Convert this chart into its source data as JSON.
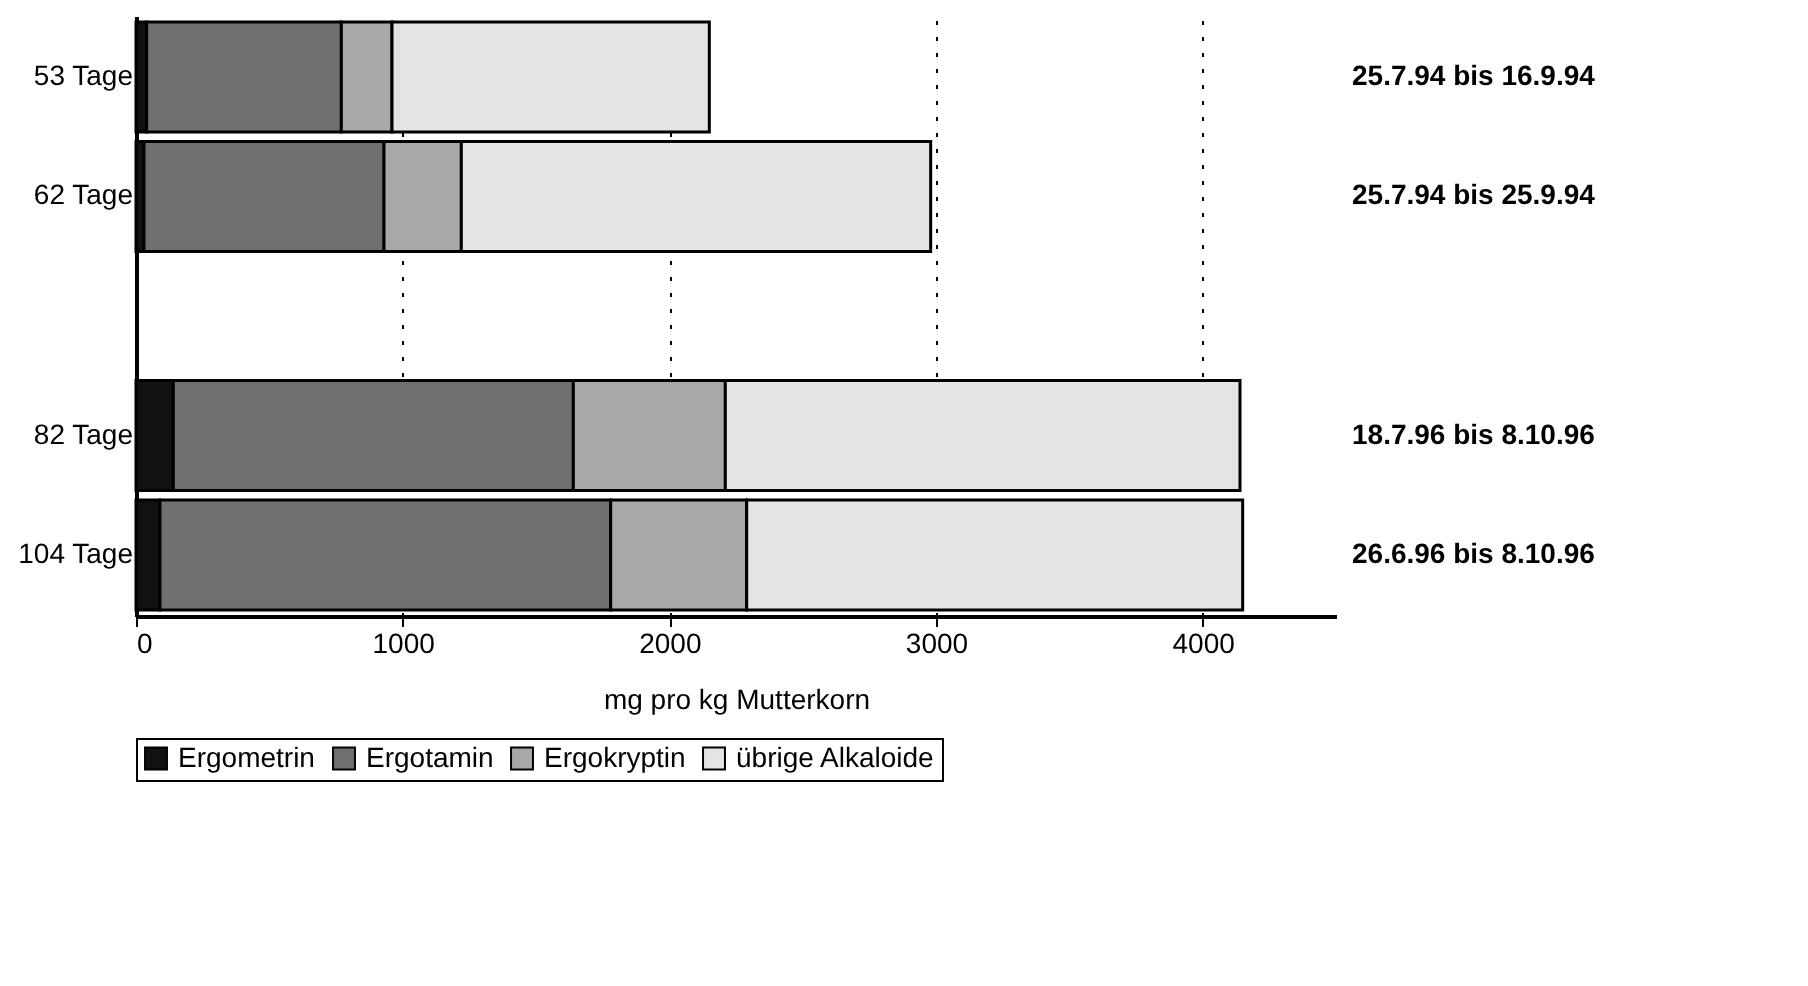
{
  "chart_data": {
    "type": "bar",
    "orientation": "horizontal",
    "stacked": true,
    "categories": [
      "53 Tage",
      "62 Tage",
      null,
      "82 Tage",
      "104 Tage"
    ],
    "series": [
      {
        "name": "Ergometrin",
        "color": "#111111",
        "values": [
          40,
          30,
          null,
          140,
          90
        ]
      },
      {
        "name": "Ergotamin",
        "color": "#707070",
        "values": [
          730,
          900,
          null,
          1500,
          1690
        ]
      },
      {
        "name": "Ergokryptin",
        "color": "#a8a8a8",
        "values": [
          190,
          290,
          null,
          570,
          510
        ]
      },
      {
        "name": "übrige Alkaloide",
        "color": "#e4e4e4",
        "values": [
          1190,
          1760,
          null,
          1930,
          1860
        ]
      }
    ],
    "xlabel": "mg pro kg Mutterkorn",
    "xlim": [
      0,
      4500
    ],
    "xticks": [
      0,
      1000,
      2000,
      3000,
      4000
    ],
    "grid": "x",
    "legend": "bottom",
    "annotations": [
      "25.7.94 bis 16.9.94",
      "25.7.94 bis 25.9.94",
      "18.7.96 bis 8.10.96",
      "26.6.96 bis 8.10.96"
    ]
  }
}
